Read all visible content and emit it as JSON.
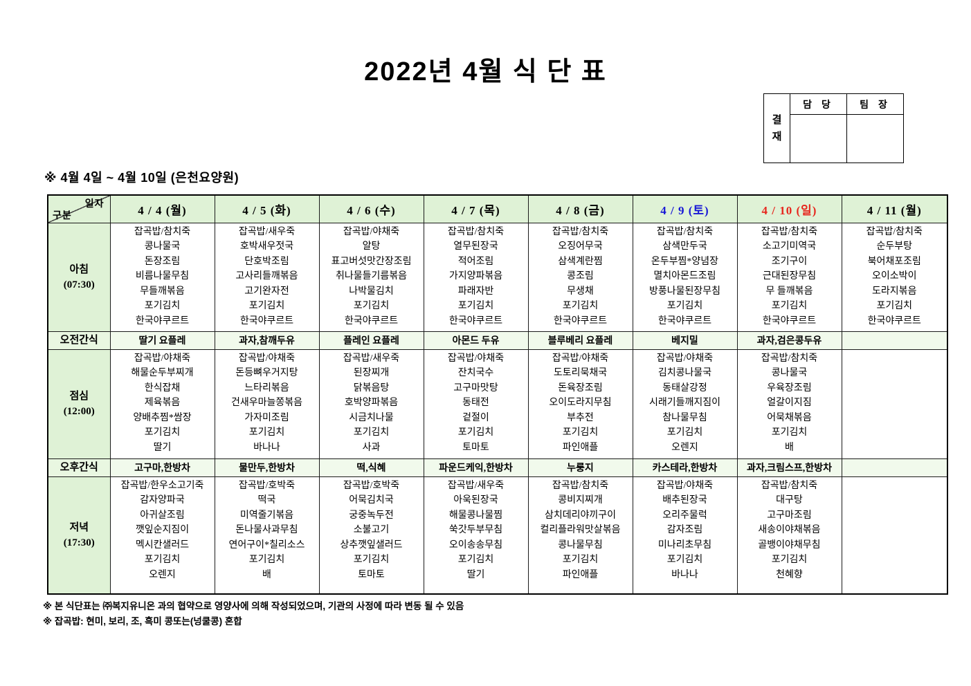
{
  "title": "2022년 4월 식 단 표",
  "approval": {
    "stamp": "결\n재",
    "columns": [
      "담 당",
      "팀 장"
    ]
  },
  "subtitle": "※ 4월 4일 ~ 4월 10일 (은천요양원)",
  "colors": {
    "header_bg": "#dff2d6",
    "snack_bg": "#f1faec",
    "saturday_text": "#1717d6",
    "sunday_text": "#e7261d",
    "weekday_text": "#000000"
  },
  "table": {
    "corner": {
      "top_right": "일자",
      "bottom_left": "구분"
    },
    "day_headers": [
      {
        "label": "4 / 4 (월)",
        "color": "#000000"
      },
      {
        "label": "4 / 5 (화)",
        "color": "#000000"
      },
      {
        "label": "4 / 6 (수)",
        "color": "#000000"
      },
      {
        "label": "4 / 7 (목)",
        "color": "#000000"
      },
      {
        "label": "4 / 8 (금)",
        "color": "#000000"
      },
      {
        "label": "4 / 9 (토)",
        "color": "#1717d6"
      },
      {
        "label": "4 / 10 (일)",
        "color": "#e7261d"
      },
      {
        "label": "4 / 11 (월)",
        "color": "#000000"
      }
    ]
  },
  "meals": {
    "breakfast": {
      "label": "아침",
      "time": "(07:30)",
      "columns": [
        [
          "잡곡밥/참치죽",
          "콩나물국",
          "돈장조림",
          "비름나물무침",
          "무들깨볶음",
          "포기김치",
          "한국야쿠르트"
        ],
        [
          "잡곡밥/새우죽",
          "호박새우젓국",
          "단호박조림",
          "고사리들깨볶음",
          "고기완자전",
          "포기김치",
          "한국야쿠르트"
        ],
        [
          "잡곡밥/야채죽",
          "알탕",
          "표고버섯맛간장조림",
          "취나물들기름볶음",
          "나박물김치",
          "포기김치",
          "한국야쿠르트"
        ],
        [
          "잡곡밥/참치죽",
          "열무된장국",
          "적어조림",
          "가지양파볶음",
          "파래자반",
          "포기김치",
          "한국야쿠르트"
        ],
        [
          "잡곡밥/참치죽",
          "오징어무국",
          "삼색계란찜",
          "콩조림",
          "무생채",
          "포기김치",
          "한국야쿠르트"
        ],
        [
          "잡곡밥/참치죽",
          "삼색만두국",
          "온두부찜*양념장",
          "멸치아몬드조림",
          "방풍나물된장무침",
          "포기김치",
          "한국야쿠르트"
        ],
        [
          "잡곡밥/참치죽",
          "소고기미역국",
          "조기구이",
          "근대된장무침",
          "무 들깨볶음",
          "포기김치",
          "한국야쿠르트"
        ],
        [
          "잡곡밥/참치죽",
          "순두부탕",
          "북어채포조림",
          "오이소박이",
          "도라지볶음",
          "포기김치",
          "한국야쿠르트"
        ]
      ]
    },
    "am_snack": {
      "label": "오전간식",
      "columns": [
        "딸기 요플레",
        "과자,참깨두유",
        "플레인 요플레",
        "아몬드 두유",
        "블루베리 요플레",
        "베지밀",
        "과자,검은콩두유",
        ""
      ]
    },
    "lunch": {
      "label": "점심",
      "time": "(12:00)",
      "columns": [
        [
          "잡곡밥/야채죽",
          "해물순두부찌개",
          "한식잡채",
          "제육볶음",
          "양배추찜*쌈장",
          "포기김치",
          "딸기"
        ],
        [
          "잡곡밥/야채죽",
          "돈등뼈우거지탕",
          "느타리볶음",
          "건새우마늘쫑볶음",
          "가자미조림",
          "포기김치",
          "바나나"
        ],
        [
          "잡곡밥/새우죽",
          "된장찌개",
          "닭볶음탕",
          "호박양파볶음",
          "시금치나물",
          "포기김치",
          "사과"
        ],
        [
          "잡곡밥/야채죽",
          "잔치국수",
          "고구마맛탕",
          "동태전",
          "겉절이",
          "포기김치",
          "토마토"
        ],
        [
          "잡곡밥/야채죽",
          "도토리묵채국",
          "돈육장조림",
          "오이도라지무침",
          "부추전",
          "포기김치",
          "파인애플"
        ],
        [
          "잡곡밥/야채죽",
          "김치콩나물국",
          "동태살강정",
          "시래기들깨지짐이",
          "참나물무침",
          "포기김치",
          "오렌지"
        ],
        [
          "잡곡밥/참치죽",
          "콩나물국",
          "우육장조림",
          "얼갈이지짐",
          "어묵채볶음",
          "포기김치",
          "배"
        ],
        []
      ]
    },
    "pm_snack": {
      "label": "오후간식",
      "columns": [
        "고구마,한방차",
        "물만두,한방차",
        "떡,식혜",
        "파운드케익,한방차",
        "누룽지",
        "카스테라,한방차",
        "과자,크림스프,한방차",
        ""
      ]
    },
    "dinner": {
      "label": "저녁",
      "time": "(17:30)",
      "columns": [
        [
          "잡곡밥/한우소고기죽",
          "감자양파국",
          "아귀살조림",
          "깻잎순지짐이",
          "멕시칸샐러드",
          "포기김치",
          "오렌지"
        ],
        [
          "잡곡밥/호박죽",
          "떡국",
          "미역줄기볶음",
          "돈나물사과무침",
          "연어구이*칠리소스",
          "포기김치",
          "배"
        ],
        [
          "잡곡밥/호박죽",
          "어묵김치국",
          "궁중녹두전",
          "소불고기",
          "상추깻잎샐러드",
          "포기김치",
          "토마토"
        ],
        [
          "잡곡밥/새우죽",
          "아욱된장국",
          "해물콩나물찜",
          "쑥갓두부무침",
          "오이송송무침",
          "포기김치",
          "딸기"
        ],
        [
          "잡곡밥/참치죽",
          "콩비지찌개",
          "삼치데리야끼구이",
          "컬리플라워맛살볶음",
          "콩나물무침",
          "포기김치",
          "파인애플"
        ],
        [
          "잡곡밥/야채죽",
          "배추된장국",
          "오리주물럭",
          "감자조림",
          "미나리초무침",
          "포기김치",
          "바나나"
        ],
        [
          "잡곡밥/참치죽",
          "대구탕",
          "고구마조림",
          "새송이야채볶음",
          "골뱅이야채무침",
          "포기김치",
          "천혜향"
        ],
        []
      ]
    }
  },
  "footnotes": [
    "※ 본 식단표는 ㈜복지유니온 과의 협약으로 영양사에 의해 작성되었으며, 기관의 사정에 따라 변동 될 수 있음",
    "※ 잡곡밥: 현미, 보리, 조, 흑미 콩또는(넝쿨콩) 혼합"
  ]
}
